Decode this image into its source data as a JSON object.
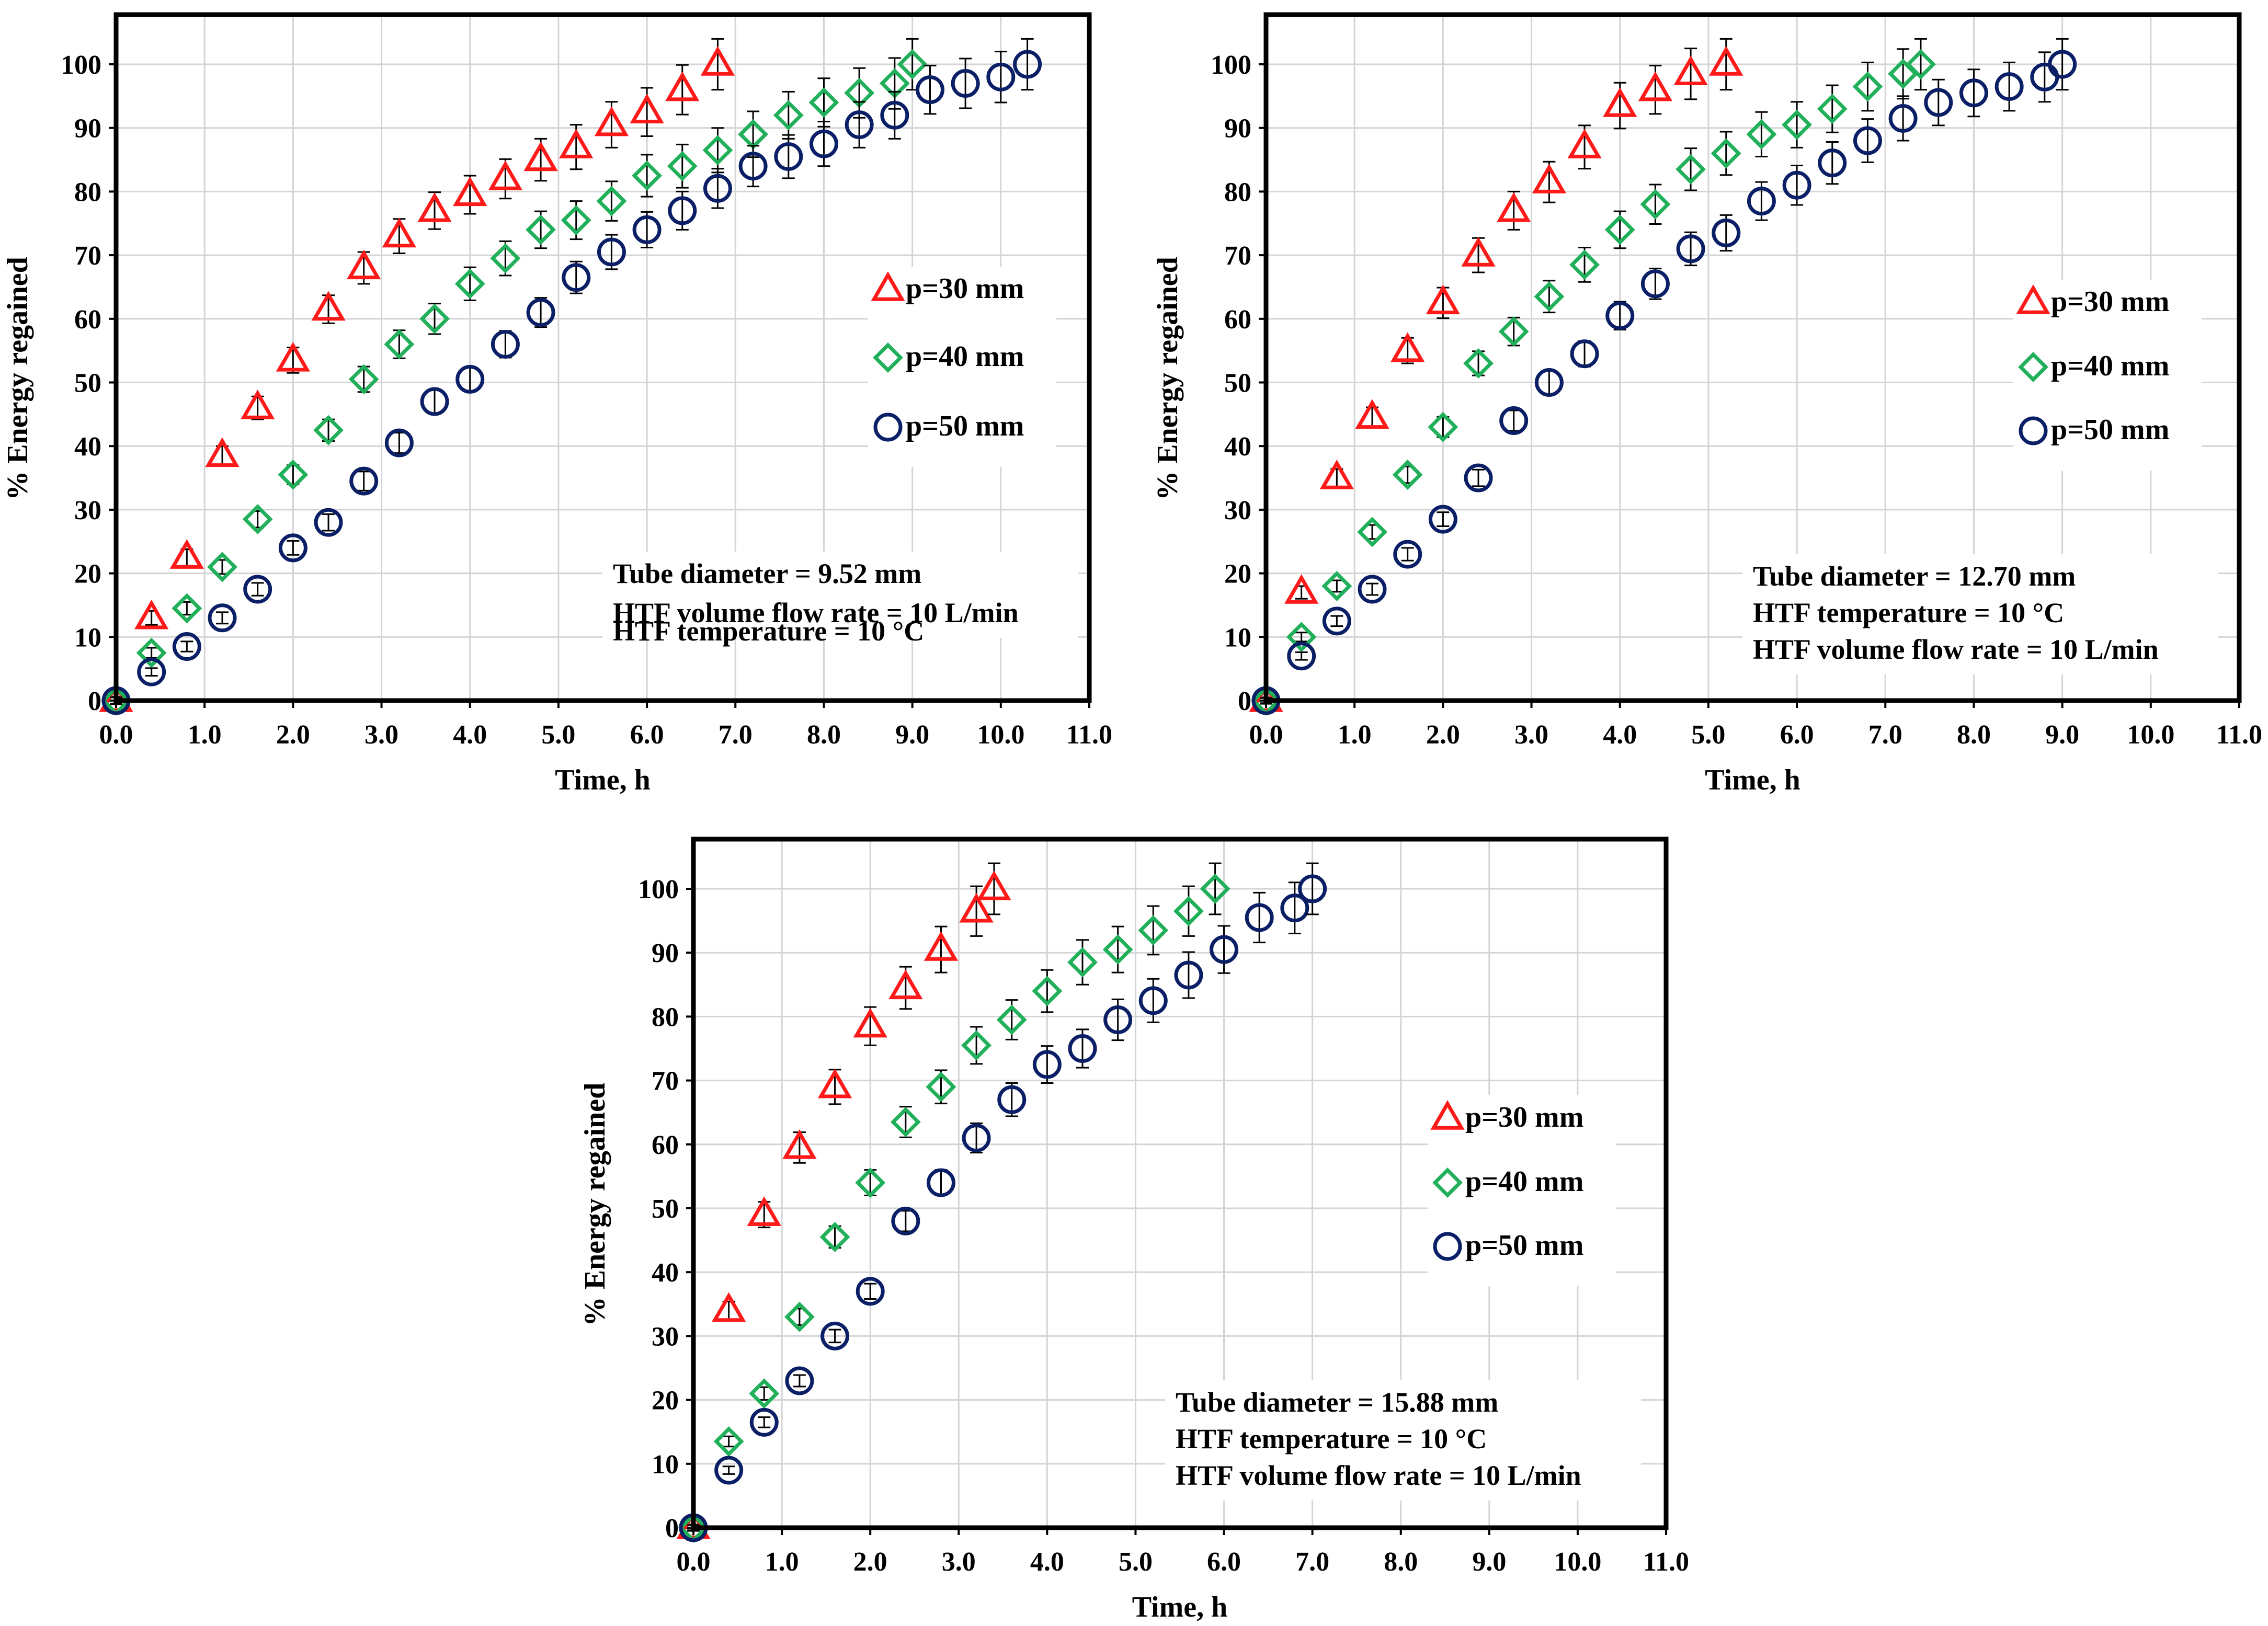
{
  "colors": {
    "p30": "#ff1a1a",
    "p40": "#21b05a",
    "p50": "#0b1f66",
    "errorbar": "#000000",
    "frame": "#000000",
    "grid": "#d4d4d4"
  },
  "chart_data": [
    {
      "type": "scatter",
      "xlabel": "Time, h",
      "ylabel": "% Energy regained",
      "xlim": [
        0,
        11
      ],
      "ylim": [
        0,
        100
      ],
      "xticks": [
        "0.0",
        "1.0",
        "2.0",
        "3.0",
        "4.0",
        "5.0",
        "6.0",
        "7.0",
        "8.0",
        "9.0",
        "10.0",
        "11.0"
      ],
      "yticks": [
        "0",
        "10",
        "20",
        "30",
        "40",
        "50",
        "60",
        "70",
        "80",
        "90",
        "100"
      ],
      "grid": true,
      "legend_position": "right",
      "annotation": [
        "Tube diameter = 9.52 mm",
        "HTF temperature = 10 °C",
        "HTF volume flow rate = 10 L/min"
      ],
      "series": [
        {
          "name": "p=30 mm",
          "marker": "triangle",
          "color": "#ff1a1a",
          "x": [
            0,
            0.4,
            0.8,
            1.2,
            1.6,
            2.0,
            2.4,
            2.8,
            3.2,
            3.6,
            4.0,
            4.4,
            4.8,
            5.2,
            5.6,
            6.0,
            6.4,
            6.8
          ],
          "y": [
            0,
            13,
            22.5,
            38.5,
            46,
            53.5,
            61.5,
            68,
            73,
            77,
            79.5,
            82,
            85,
            87,
            90.5,
            92.5,
            96,
            100
          ],
          "err": [
            0.6,
            1.1,
            1.3,
            1.5,
            1.8,
            2.0,
            2.2,
            2.5,
            2.7,
            2.9,
            3.0,
            3.1,
            3.3,
            3.5,
            3.6,
            3.8,
            3.9,
            4.0
          ]
        },
        {
          "name": "p=40 mm",
          "marker": "diamond",
          "color": "#21b05a",
          "x": [
            0,
            0.4,
            0.8,
            1.2,
            1.6,
            2.0,
            2.4,
            2.8,
            3.2,
            3.6,
            4.0,
            4.4,
            4.8,
            5.2,
            5.6,
            6.0,
            6.4,
            6.8,
            7.2,
            7.6,
            8.0,
            8.4,
            8.8,
            9.0
          ],
          "y": [
            0,
            7.5,
            14.5,
            21,
            28.5,
            35.5,
            42.5,
            50.5,
            56,
            60,
            65.5,
            69.5,
            74,
            75.5,
            78.5,
            82.5,
            84,
            86.5,
            89,
            92,
            94,
            95.5,
            97,
            100
          ],
          "err": [
            0.5,
            0.8,
            1.0,
            1.1,
            1.3,
            1.5,
            1.7,
            2.0,
            2.2,
            2.4,
            2.6,
            2.7,
            2.9,
            3.0,
            3.1,
            3.3,
            3.4,
            3.5,
            3.6,
            3.7,
            3.8,
            3.9,
            4.0,
            4.0
          ]
        },
        {
          "name": "p=50 mm",
          "marker": "circle",
          "color": "#0b1f66",
          "x": [
            0,
            0.4,
            0.8,
            1.2,
            1.6,
            2.0,
            2.4,
            2.8,
            3.2,
            3.6,
            4.0,
            4.4,
            4.8,
            5.2,
            5.6,
            6.0,
            6.4,
            6.8,
            7.2,
            7.6,
            8.0,
            8.4,
            8.8,
            9.2,
            9.6,
            10.0,
            10.3
          ],
          "y": [
            0,
            4.5,
            8.5,
            13,
            17.5,
            24,
            28,
            34.5,
            40.5,
            47,
            50.5,
            56,
            61,
            66.5,
            70.5,
            74,
            77,
            80.5,
            84,
            85.5,
            87.5,
            90.5,
            92,
            96,
            97,
            98,
            100
          ],
          "err": [
            0.5,
            0.6,
            0.8,
            0.9,
            1.0,
            1.1,
            1.3,
            1.5,
            1.6,
            1.8,
            1.9,
            2.1,
            2.3,
            2.5,
            2.7,
            2.8,
            3.0,
            3.1,
            3.2,
            3.4,
            3.5,
            3.6,
            3.7,
            3.8,
            3.9,
            4.0,
            4.0
          ]
        }
      ]
    },
    {
      "type": "scatter",
      "xlabel": "Time, h",
      "ylabel": "% Energy regained",
      "xlim": [
        0,
        11
      ],
      "ylim": [
        0,
        100
      ],
      "xticks": [
        "0.0",
        "1.0",
        "2.0",
        "3.0",
        "4.0",
        "5.0",
        "6.0",
        "7.0",
        "8.0",
        "9.0",
        "10.0",
        "11.0"
      ],
      "yticks": [
        "0",
        "10",
        "20",
        "30",
        "40",
        "50",
        "60",
        "70",
        "80",
        "90",
        "100"
      ],
      "grid": true,
      "legend_position": "right",
      "annotation": [
        "Tube diameter = 12.70 mm",
        "HTF temperature = 10 °C",
        "HTF volume flow rate = 10 L/min"
      ],
      "series": [
        {
          "name": "p=30 mm",
          "marker": "triangle",
          "color": "#ff1a1a",
          "x": [
            0,
            0.4,
            0.8,
            1.2,
            1.6,
            2.0,
            2.4,
            2.8,
            3.2,
            3.6,
            4.0,
            4.4,
            4.8,
            5.2
          ],
          "y": [
            0,
            17,
            35,
            44.5,
            55,
            62.5,
            70,
            77,
            81.5,
            87,
            93.5,
            96,
            98.5,
            100
          ],
          "err": [
            0.5,
            1.0,
            1.4,
            1.6,
            2.0,
            2.4,
            2.7,
            3.0,
            3.2,
            3.4,
            3.6,
            3.8,
            4.0,
            4.0
          ]
        },
        {
          "name": "p=40 mm",
          "marker": "diamond",
          "color": "#21b05a",
          "x": [
            0,
            0.4,
            0.8,
            1.2,
            1.6,
            2.0,
            2.4,
            2.8,
            3.2,
            3.6,
            4.0,
            4.4,
            4.8,
            5.2,
            5.6,
            6.0,
            6.4,
            6.8,
            7.2,
            7.4
          ],
          "y": [
            0,
            10,
            18,
            26.5,
            35.5,
            43,
            53,
            58,
            63.5,
            68.5,
            74,
            78,
            83.5,
            86,
            89,
            90.5,
            93,
            96.5,
            98.5,
            100
          ],
          "err": [
            0.4,
            0.7,
            0.9,
            1.1,
            1.3,
            1.6,
            1.9,
            2.2,
            2.5,
            2.7,
            2.9,
            3.1,
            3.3,
            3.4,
            3.5,
            3.6,
            3.7,
            3.8,
            3.9,
            4.0
          ]
        },
        {
          "name": "p=50 mm",
          "marker": "circle",
          "color": "#0b1f66",
          "x": [
            0,
            0.4,
            0.8,
            1.2,
            1.6,
            2.0,
            2.4,
            2.8,
            3.2,
            3.6,
            4.0,
            4.4,
            4.8,
            5.2,
            5.6,
            6.0,
            6.4,
            6.8,
            7.2,
            7.6,
            8.0,
            8.4,
            8.8,
            9.0
          ],
          "y": [
            0,
            7,
            12.5,
            17.5,
            23,
            28.5,
            35,
            44,
            50,
            54.5,
            60.5,
            65.5,
            71,
            73.5,
            78.5,
            81,
            84.5,
            88,
            91.5,
            94,
            95.5,
            96.5,
            98,
            100
          ],
          "err": [
            0.4,
            0.6,
            0.8,
            0.9,
            1.0,
            1.1,
            1.3,
            1.6,
            1.8,
            2.0,
            2.2,
            2.4,
            2.6,
            2.8,
            3.0,
            3.1,
            3.3,
            3.4,
            3.5,
            3.6,
            3.7,
            3.8,
            3.9,
            4.0
          ]
        }
      ]
    },
    {
      "type": "scatter",
      "xlabel": "Time, h",
      "ylabel": "% Energy regained",
      "xlim": [
        0,
        11
      ],
      "ylim": [
        0,
        100
      ],
      "xticks": [
        "0.0",
        "1.0",
        "2.0",
        "3.0",
        "4.0",
        "5.0",
        "6.0",
        "7.0",
        "8.0",
        "9.0",
        "10.0",
        "11.0"
      ],
      "yticks": [
        "0",
        "10",
        "20",
        "30",
        "40",
        "50",
        "60",
        "70",
        "80",
        "90",
        "100"
      ],
      "grid": true,
      "legend_position": "right",
      "annotation": [
        "Tube diameter = 15.88 mm",
        "HTF temperature = 10 °C",
        "HTF volume flow rate = 10 L/min"
      ],
      "series": [
        {
          "name": "p=30 mm",
          "marker": "triangle",
          "color": "#ff1a1a",
          "x": [
            0,
            0.4,
            0.8,
            1.2,
            1.6,
            2.0,
            2.4,
            2.8,
            3.2,
            3.4
          ],
          "y": [
            0,
            34,
            49,
            59.5,
            69,
            78.5,
            84.5,
            90.5,
            96.5,
            100
          ],
          "err": [
            0.5,
            1.4,
            2.0,
            2.4,
            2.7,
            3.0,
            3.3,
            3.6,
            3.9,
            4.0
          ]
        },
        {
          "name": "p=40 mm",
          "marker": "diamond",
          "color": "#21b05a",
          "x": [
            0,
            0.4,
            0.8,
            1.2,
            1.6,
            2.0,
            2.4,
            2.8,
            3.2,
            3.6,
            4.0,
            4.4,
            4.8,
            5.2,
            5.6,
            5.9
          ],
          "y": [
            0,
            13.5,
            21,
            33,
            45.5,
            54,
            63.5,
            69,
            75.5,
            79.5,
            84,
            88.5,
            90.5,
            93.5,
            96.5,
            100
          ],
          "err": [
            0.4,
            0.8,
            1.0,
            1.3,
            1.7,
            2.0,
            2.4,
            2.6,
            2.9,
            3.1,
            3.3,
            3.5,
            3.6,
            3.8,
            3.9,
            4.0
          ]
        },
        {
          "name": "p=50 mm",
          "marker": "circle",
          "color": "#0b1f66",
          "x": [
            0,
            0.4,
            0.8,
            1.2,
            1.6,
            2.0,
            2.4,
            2.8,
            3.2,
            3.6,
            4.0,
            4.4,
            4.8,
            5.2,
            5.6,
            6.0,
            6.4,
            6.8,
            7.0
          ],
          "y": [
            0,
            9,
            16.5,
            23,
            30,
            37,
            48,
            54,
            61,
            67,
            72.5,
            75,
            79.5,
            82.5,
            86.5,
            90.5,
            95.5,
            97,
            100
          ],
          "err": [
            0.4,
            0.6,
            0.8,
            0.9,
            1.0,
            1.2,
            1.6,
            2.0,
            2.3,
            2.6,
            2.9,
            3.0,
            3.2,
            3.4,
            3.6,
            3.7,
            3.9,
            4.0,
            4.0
          ]
        }
      ]
    }
  ]
}
